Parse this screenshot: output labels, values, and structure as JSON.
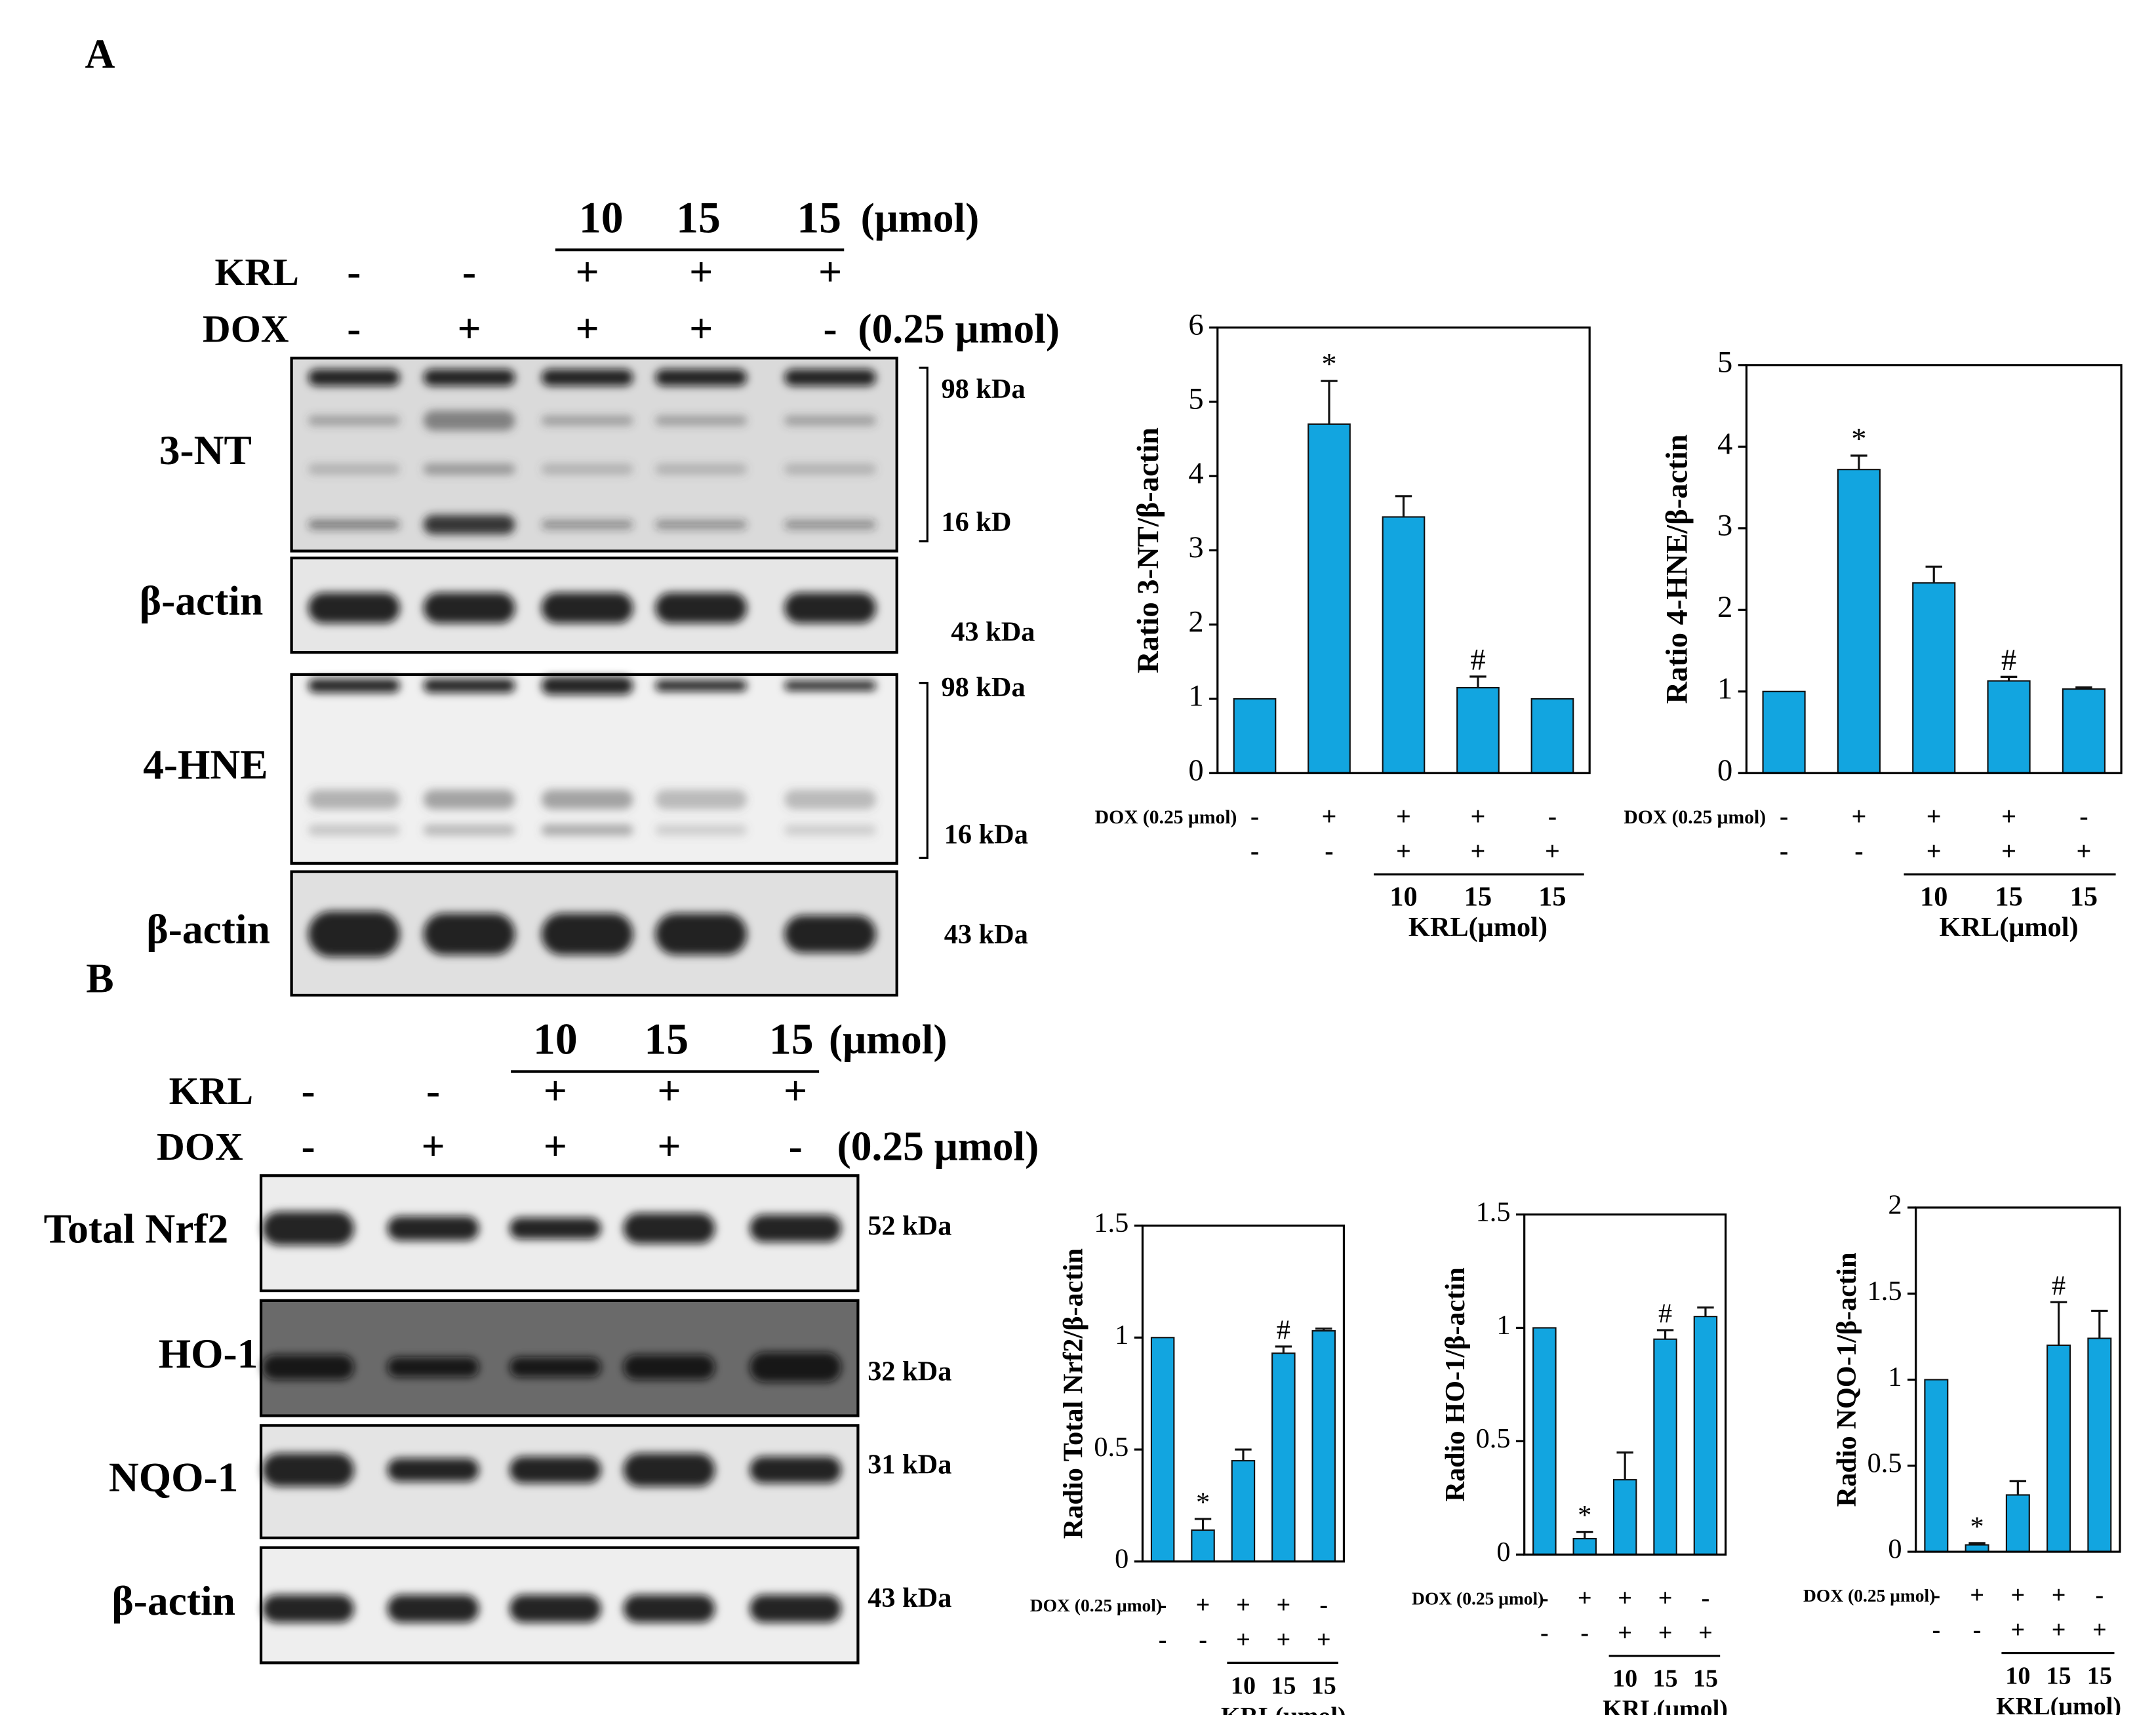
{
  "panel_a": {
    "label": "A",
    "doses": [
      "10",
      "15",
      "15"
    ],
    "dose_unit": "(μmol)",
    "krl_label": "KRL",
    "krl_signs": [
      "-",
      "-",
      "+",
      "+",
      "+"
    ],
    "dox_label": "DOX",
    "dox_signs": [
      "-",
      "+",
      "+",
      "+",
      "-"
    ],
    "dox_unit": "(0.25 μmol)",
    "row_labels": [
      "3-NT",
      "β-actin",
      "4-HNE",
      "β-actin"
    ],
    "markers": [
      "98 kDa",
      "16 kD",
      "43 kDa",
      "98 kDa",
      "16 kDa",
      "43 kDa"
    ]
  },
  "panel_b": {
    "label": "B",
    "doses": [
      "10",
      "15",
      "15"
    ],
    "dose_unit": "(μmol)",
    "krl_label": "KRL",
    "krl_signs": [
      "-",
      "-",
      "+",
      "+",
      "+"
    ],
    "dox_label": "DOX",
    "dox_signs": [
      "-",
      "+",
      "+",
      "+",
      "-"
    ],
    "dox_unit": "(0.25 μmol)",
    "row_labels": [
      "Total Nrf2",
      "HO-1",
      "NQO-1",
      "β-actin"
    ],
    "markers": [
      "52 kDa",
      "32 kDa",
      "31 kDa",
      "43 kDa"
    ]
  },
  "chart_data": [
    {
      "type": "bar",
      "ylabel": "Ratio 3-NT/β-actin",
      "color": "#12a5e0",
      "values": [
        1,
        4.7,
        3.45,
        1.15,
        1.0
      ],
      "errors": [
        null,
        0.58,
        0.28,
        0.15,
        null
      ],
      "significance": [
        null,
        "*",
        null,
        "#",
        null
      ],
      "ylim": [
        0,
        6
      ],
      "yticks": [
        0,
        1,
        2,
        3,
        4,
        5,
        6
      ],
      "dox_label": "DOX (0.25 μmol)",
      "dox_signs": [
        "-",
        "+",
        "+",
        "+",
        "-"
      ],
      "krl_signs": [
        "-",
        "-",
        "+",
        "+",
        "+"
      ],
      "doses": [
        "10",
        "15",
        "15"
      ],
      "krl_label": "KRL(μmol)"
    },
    {
      "type": "bar",
      "ylabel": "Ratio 4-HNE/β-actin",
      "color": "#12a5e0",
      "values": [
        1,
        3.72,
        2.33,
        1.13,
        1.03
      ],
      "errors": [
        null,
        0.17,
        0.2,
        0.05,
        0.02
      ],
      "significance": [
        null,
        "*",
        null,
        "#",
        null
      ],
      "ylim": [
        0,
        5
      ],
      "yticks": [
        0,
        1,
        2,
        3,
        4,
        5
      ],
      "dox_label": "DOX (0.25 μmol)",
      "dox_signs": [
        "-",
        "+",
        "+",
        "+",
        "-"
      ],
      "krl_signs": [
        "-",
        "-",
        "+",
        "+",
        "+"
      ],
      "doses": [
        "10",
        "15",
        "15"
      ],
      "krl_label": "KRL(μmol)"
    },
    {
      "type": "bar",
      "ylabel": "Radio Total Nrf2/β-actin",
      "color": "#12a5e0",
      "values": [
        1,
        0.14,
        0.45,
        0.93,
        1.03
      ],
      "errors": [
        null,
        0.05,
        0.05,
        0.03,
        0.01
      ],
      "significance": [
        null,
        "*",
        null,
        "#",
        null
      ],
      "ylim": [
        0,
        1.5
      ],
      "yticks": [
        0,
        0.5,
        1,
        1.5
      ],
      "dox_label": "DOX (0.25 μmol)",
      "dox_signs": [
        "-",
        "+",
        "+",
        "+",
        "-"
      ],
      "krl_signs": [
        "-",
        "-",
        "+",
        "+",
        "+"
      ],
      "doses": [
        "10",
        "15",
        "15"
      ],
      "krl_label": "KRL(μmol)"
    },
    {
      "type": "bar",
      "ylabel": "Radio HO-1/β-actin",
      "color": "#12a5e0",
      "values": [
        1,
        0.07,
        0.33,
        0.95,
        1.05
      ],
      "errors": [
        null,
        0.03,
        0.12,
        0.04,
        0.04
      ],
      "significance": [
        null,
        "*",
        null,
        "#",
        null
      ],
      "ylim": [
        0,
        1.5
      ],
      "yticks": [
        0,
        0.5,
        1,
        1.5
      ],
      "dox_label": "DOX (0.25 μmol)",
      "dox_signs": [
        "-",
        "+",
        "+",
        "+",
        "-"
      ],
      "krl_signs": [
        "-",
        "-",
        "+",
        "+",
        "+"
      ],
      "doses": [
        "10",
        "15",
        "15"
      ],
      "krl_label": "KRL(μmol)"
    },
    {
      "type": "bar",
      "ylabel": "Radio NQO-1/β-actin",
      "color": "#12a5e0",
      "values": [
        1,
        0.04,
        0.33,
        1.2,
        1.24
      ],
      "errors": [
        null,
        0.01,
        0.08,
        0.25,
        0.16
      ],
      "significance": [
        null,
        "*",
        null,
        "#",
        null
      ],
      "ylim": [
        0,
        2
      ],
      "yticks": [
        0,
        0.5,
        1,
        1.5,
        2
      ],
      "dox_label": "DOX (0.25 μmol)",
      "dox_signs": [
        "-",
        "+",
        "+",
        "+",
        "-"
      ],
      "krl_signs": [
        "-",
        "-",
        "+",
        "+",
        "+"
      ],
      "doses": [
        "10",
        "15",
        "15"
      ],
      "krl_label": "KRL(μmol)"
    }
  ]
}
